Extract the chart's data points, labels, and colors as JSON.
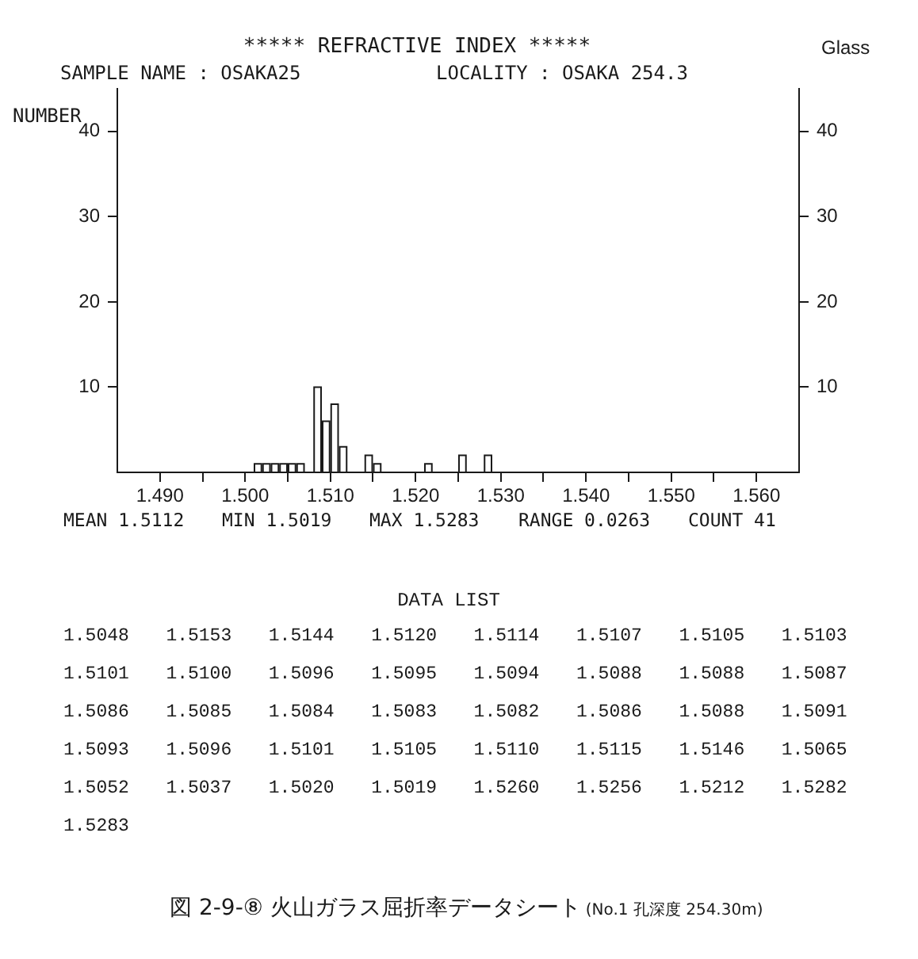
{
  "chart_data": {
    "type": "histogram",
    "title": "***** REFRACTIVE INDEX *****",
    "ylabel": "NUMBER",
    "bins": [
      1.501,
      1.502,
      1.503,
      1.504,
      1.505,
      1.506,
      1.507,
      1.508,
      1.509,
      1.51,
      1.511,
      1.512,
      1.513,
      1.514,
      1.515,
      1.516,
      1.517,
      1.518,
      1.519,
      1.52,
      1.521,
      1.522,
      1.523,
      1.524,
      1.525,
      1.526,
      1.527,
      1.528,
      1.529
    ],
    "values": [
      1,
      1,
      1,
      1,
      1,
      1,
      0,
      10,
      6,
      8,
      3,
      0,
      0,
      2,
      1,
      0,
      0,
      0,
      0,
      0,
      1,
      0,
      0,
      0,
      2,
      0,
      0,
      2
    ],
    "color": "#1a1a1a",
    "xlim": [
      1.485,
      1.565
    ],
    "xticks": [
      {
        "value": 1.49,
        "label": "1.490"
      },
      {
        "value": 1.495,
        "label": null
      },
      {
        "value": 1.5,
        "label": "1.500"
      },
      {
        "value": 1.505,
        "label": null
      },
      {
        "value": 1.51,
        "label": "1.510"
      },
      {
        "value": 1.515,
        "label": null
      },
      {
        "value": 1.52,
        "label": "1.520"
      },
      {
        "value": 1.525,
        "label": null
      },
      {
        "value": 1.53,
        "label": "1.530"
      },
      {
        "value": 1.535,
        "label": null
      },
      {
        "value": 1.54,
        "label": "1.540"
      },
      {
        "value": 1.545,
        "label": null
      },
      {
        "value": 1.55,
        "label": "1.550"
      },
      {
        "value": 1.555,
        "label": null
      },
      {
        "value": 1.56,
        "label": "1.560"
      }
    ],
    "ylim": [
      0,
      45
    ],
    "yticks": [
      10,
      20,
      30,
      40
    ],
    "y2lim": [
      0,
      45
    ],
    "y2ticks": [
      10,
      20,
      30,
      40
    ],
    "annotations": [
      "Glass",
      "SAMPLE NAME : OSAKA25",
      "LOCALITY : OSAKA 254.3",
      "MEAN 1.5112",
      "MIN 1.5019",
      "MAX 1.5283",
      "RANGE 0.0263",
      "COUNT 41",
      "DATA LIST",
      "1.5048",
      "1.5153",
      "1.5144",
      "1.5120",
      "1.5114",
      "1.5107",
      "1.5105",
      "1.5103",
      "1.5101",
      "1.5100",
      "1.5096",
      "1.5095",
      "1.5094",
      "1.5088",
      "1.5088",
      "1.5087",
      "1.5086",
      "1.5085",
      "1.5084",
      "1.5083",
      "1.5082",
      "1.5086",
      "1.5088",
      "1.5091",
      "1.5093",
      "1.5096",
      "1.5101",
      "1.5105",
      "1.5110",
      "1.5115",
      "1.5146",
      "1.5065",
      "1.5052",
      "1.5037",
      "1.5020",
      "1.5019",
      "1.5260",
      "1.5256",
      "1.5212",
      "1.5282",
      "1.5283",
      "図 2-9-⑧ 火山ガラス屈折率データシート",
      "(No.1 孔深度 254.30m)"
    ]
  }
}
